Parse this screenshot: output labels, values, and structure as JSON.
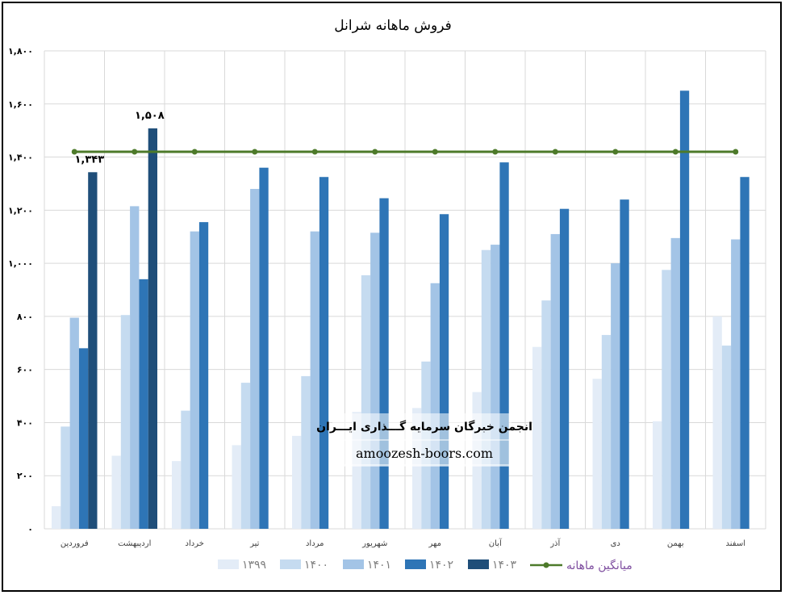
{
  "chart_data": {
    "type": "bar",
    "title": "فروش ماهانه شرانل",
    "categories": [
      "فروردین",
      "اردیبهشت",
      "خرداد",
      "تیر",
      "مرداد",
      "شهریور",
      "مهر",
      "آبان",
      "آذر",
      "دی",
      "بهمن",
      "اسفند"
    ],
    "series": [
      {
        "name": "۱۳۹۹",
        "color": "#e3ecf7",
        "values": [
          85,
          275,
          255,
          315,
          350,
          440,
          455,
          515,
          685,
          565,
          405,
          800
        ]
      },
      {
        "name": "۱۴۰۰",
        "color": "#c5dbf0",
        "values": [
          385,
          805,
          445,
          550,
          575,
          955,
          630,
          1050,
          860,
          730,
          975,
          690
        ]
      },
      {
        "name": "۱۴۰۱",
        "color": "#a3c4e6",
        "values": [
          795,
          1215,
          1120,
          1280,
          1120,
          1115,
          925,
          1070,
          1110,
          1000,
          1095,
          1090
        ]
      },
      {
        "name": "۱۴۰۲",
        "color": "#2e75b6",
        "values": [
          680,
          940,
          1155,
          1360,
          1325,
          1245,
          1185,
          1380,
          1205,
          1240,
          1650,
          1325
        ]
      },
      {
        "name": "۱۴۰۳",
        "color": "#1f4e79",
        "values": [
          1343,
          1508,
          null,
          null,
          null,
          null,
          null,
          null,
          null,
          null,
          null,
          null
        ]
      }
    ],
    "line_series": {
      "name": "میانگین ماهانه",
      "color": "#4d7a2a",
      "value": 1420
    },
    "data_labels": [
      {
        "series": "۱۴۰۳",
        "category": "فروردین",
        "text": "۱,۳۴۳"
      },
      {
        "series": "۱۴۰۳",
        "category": "اردیبهشت",
        "text": "۱,۵۰۸"
      }
    ],
    "ylim": [
      0,
      1800
    ],
    "yticks": [
      0,
      200,
      400,
      600,
      800,
      1000,
      1200,
      1400,
      1600,
      1800
    ],
    "ytick_labels": [
      "۰",
      "۲۰۰",
      "۴۰۰",
      "۶۰۰",
      "۸۰۰",
      "۱,۰۰۰",
      "۱,۲۰۰",
      "۱,۴۰۰",
      "۱,۶۰۰",
      "۱,۸۰۰"
    ],
    "grid": true,
    "legend_position": "bottom"
  },
  "watermark": {
    "line1": "انجمن خبرگان سرمایه گـــذاری ایـــران",
    "line2": "amoozesh-boors.com"
  }
}
